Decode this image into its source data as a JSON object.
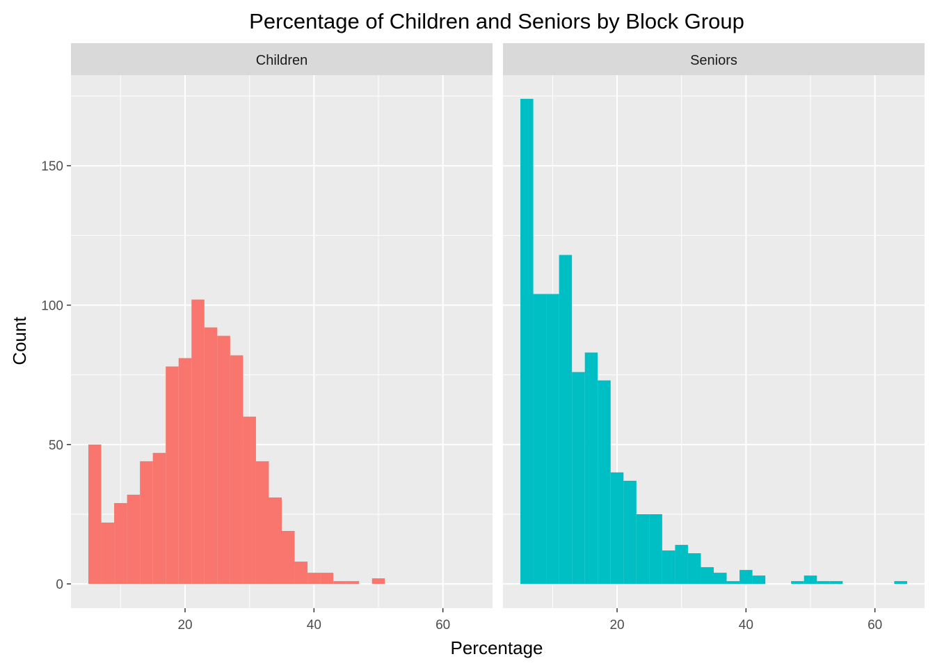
{
  "chart_data": {
    "type": "bar",
    "subtype": "histogram-faceted",
    "title": "Percentage of Children and Seniors by Block Group",
    "xlabel": "Percentage",
    "ylabel": "Count",
    "xlim": [
      2.3,
      67.7
    ],
    "ylim": [
      -8.7,
      182.5
    ],
    "x_ticks": [
      20,
      40,
      60
    ],
    "y_ticks": [
      0,
      50,
      100,
      150
    ],
    "x_tick_labels": [
      "20",
      "40",
      "60"
    ],
    "y_tick_labels": [
      "0",
      "50",
      "100",
      "150"
    ],
    "bin_width": 2,
    "grid": true,
    "legend": "none",
    "panel_background": "#ebebeb",
    "strip_background": "#d9d9d9",
    "series": [
      {
        "name": "Children",
        "color": "#F8766D",
        "bin_starts": [
          5,
          7,
          9,
          11,
          13,
          15,
          17,
          19,
          21,
          23,
          25,
          27,
          29,
          31,
          33,
          35,
          37,
          39,
          41,
          43,
          45,
          47,
          49
        ],
        "counts": [
          50,
          22,
          29,
          32,
          44,
          47,
          78,
          81,
          102,
          92,
          89,
          82,
          60,
          44,
          31,
          19,
          8,
          4,
          4,
          1,
          1,
          0,
          2
        ]
      },
      {
        "name": "Seniors",
        "color": "#00BFC4",
        "bin_starts": [
          5,
          7,
          9,
          11,
          13,
          15,
          17,
          19,
          21,
          23,
          25,
          27,
          29,
          31,
          33,
          35,
          37,
          39,
          41,
          43,
          45,
          47,
          49,
          51,
          53,
          55,
          57,
          59,
          61,
          63
        ],
        "counts": [
          174,
          104,
          104,
          118,
          76,
          83,
          73,
          40,
          37,
          25,
          25,
          12,
          14,
          11,
          6,
          4,
          1,
          5,
          3,
          0,
          0,
          1,
          3,
          1,
          1,
          0,
          0,
          0,
          0,
          1
        ]
      }
    ]
  }
}
